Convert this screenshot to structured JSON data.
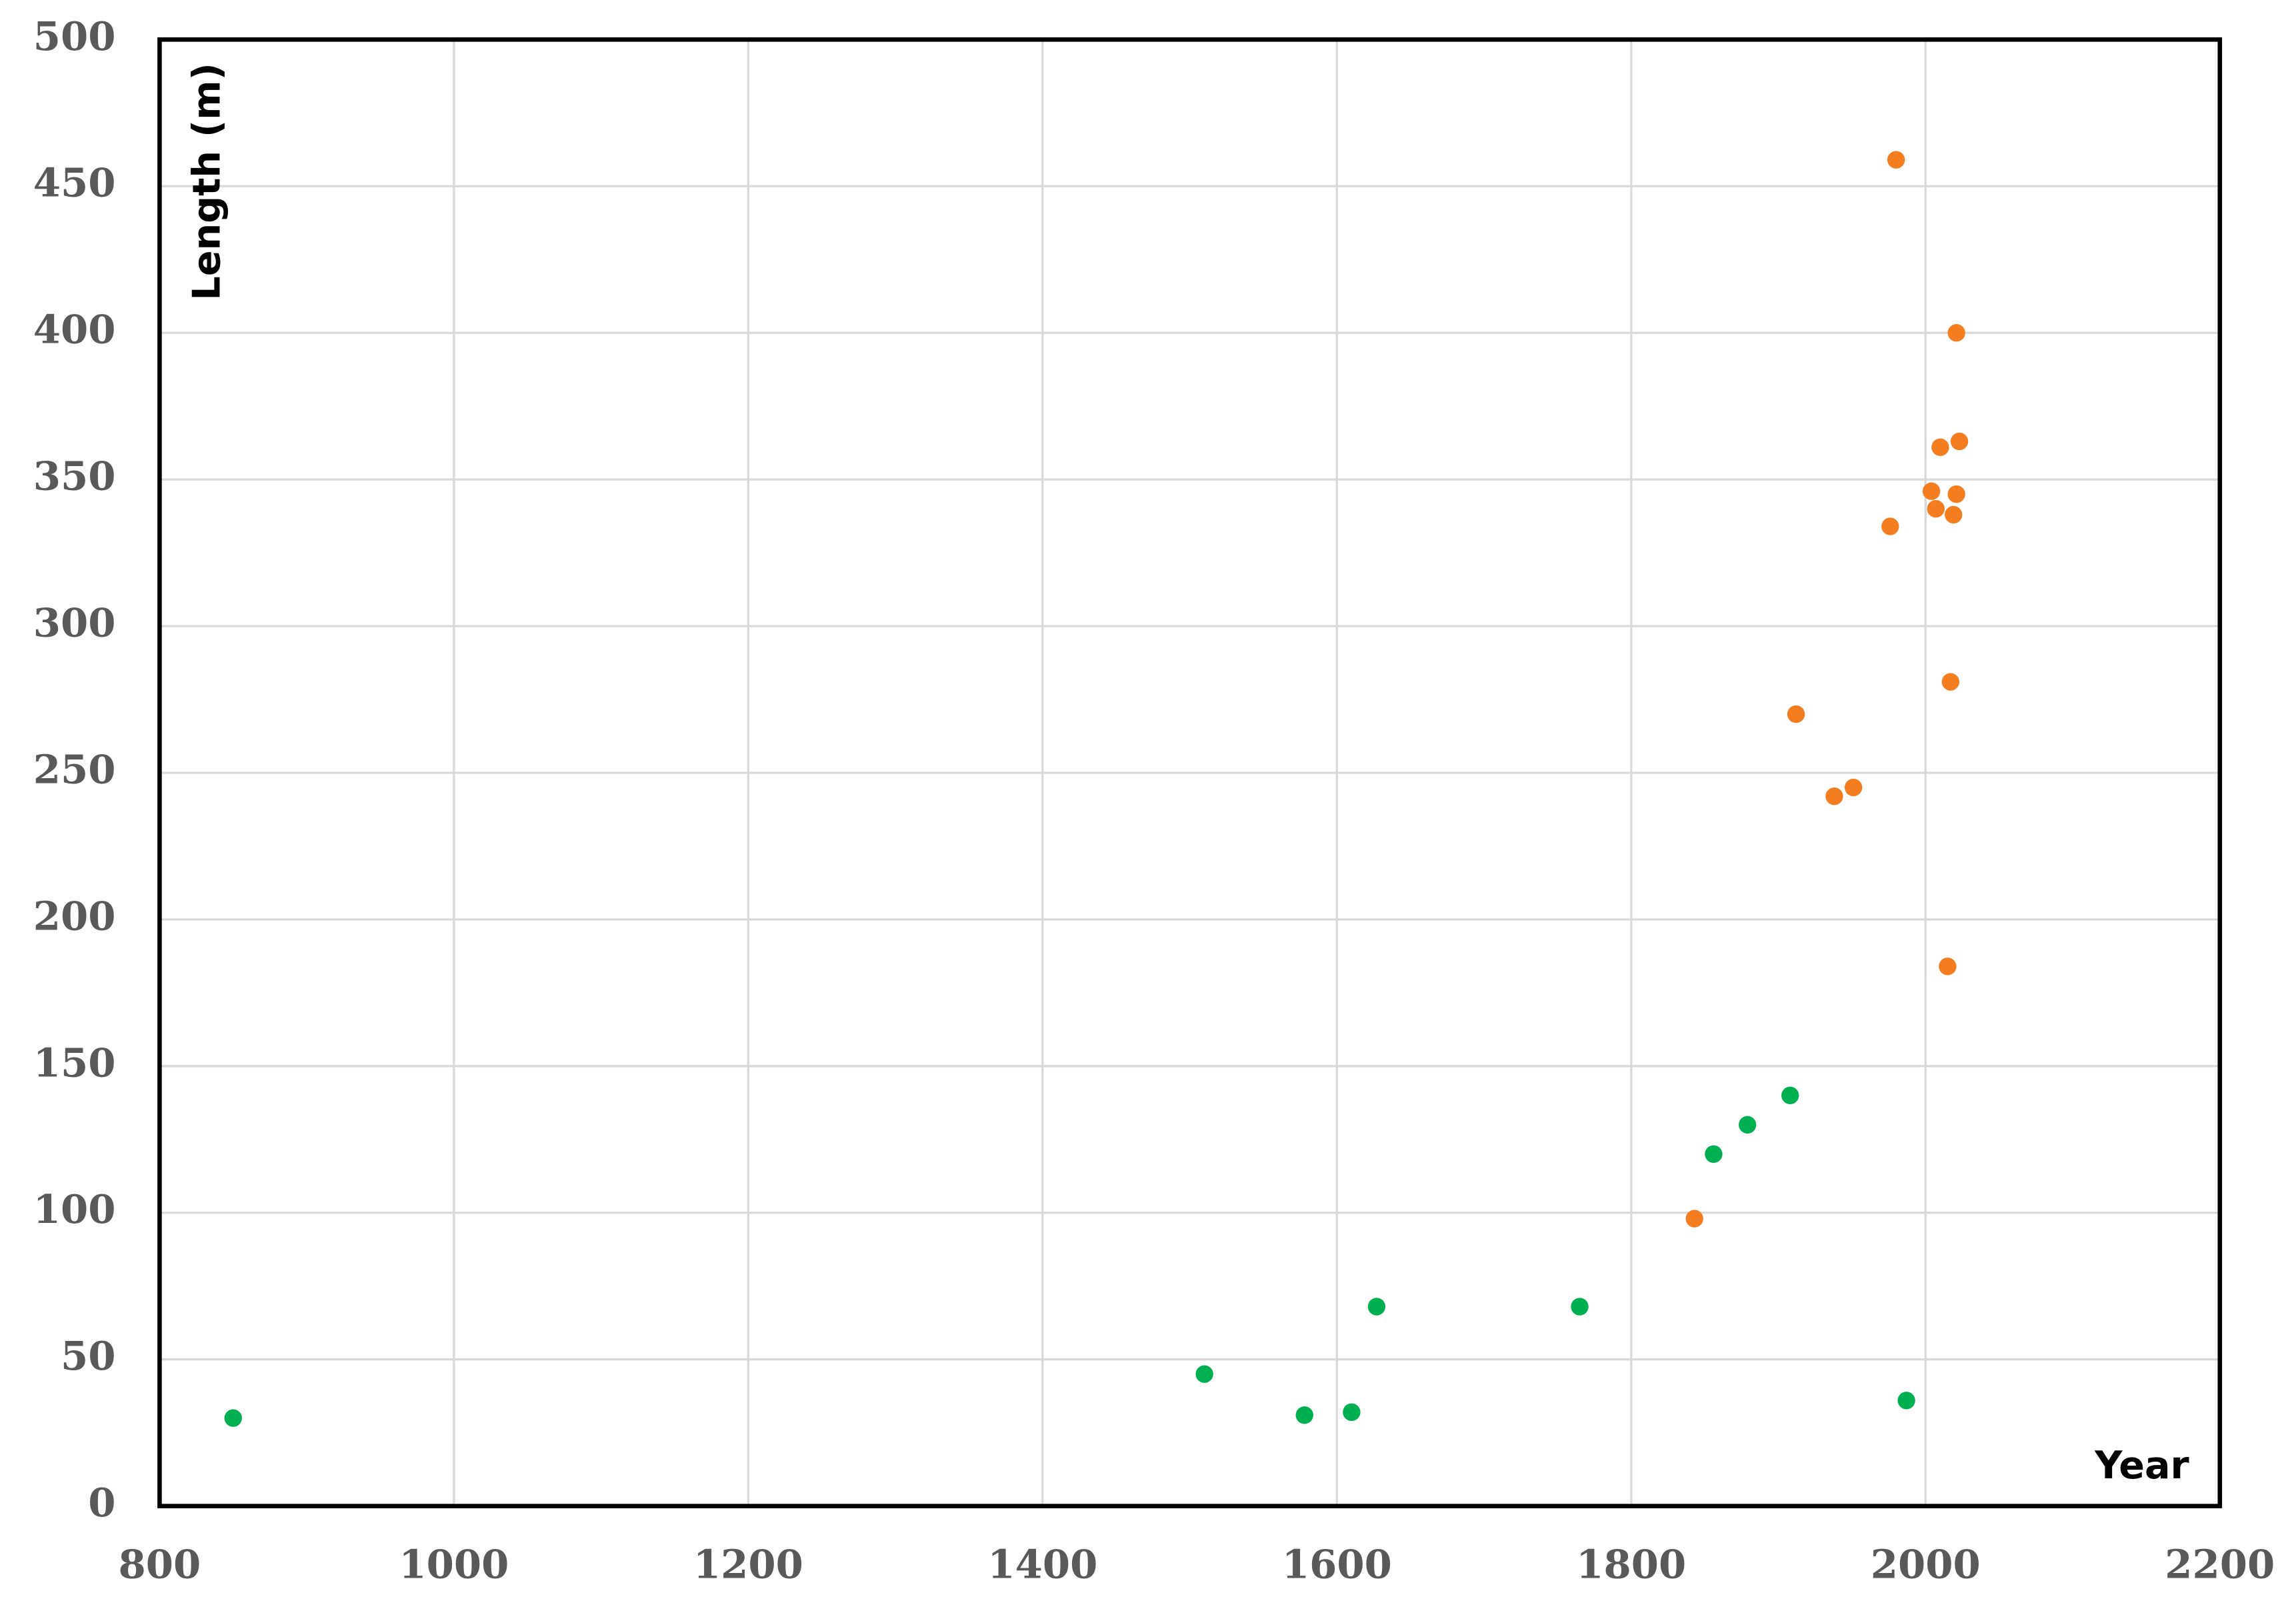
{
  "chart_data": {
    "type": "scatter",
    "x_label": "Year",
    "y_label": "Length (m)",
    "xlim": [
      800,
      2200
    ],
    "xticks": [
      800,
      1000,
      1200,
      1400,
      1600,
      1800,
      2000,
      2200
    ],
    "ylim": [
      0,
      500
    ],
    "yticks": [
      0,
      50,
      100,
      150,
      200,
      250,
      300,
      350,
      400,
      450,
      500
    ],
    "grid": true,
    "series": [
      {
        "color": "#00b050",
        "x": [
          850,
          1510,
          1578,
          1610,
          1627,
          1765,
          1856,
          1879,
          1908,
          1987
        ],
        "values": [
          30,
          45,
          31,
          32,
          68,
          68,
          120,
          130,
          140,
          36
        ]
      },
      {
        "color": "#f47d20",
        "x": [
          1843,
          1912,
          1938,
          1951,
          1976,
          1980,
          2004,
          2007,
          2010,
          2015,
          2017,
          2019,
          2021,
          2021,
          2023
        ],
        "values": [
          98,
          270,
          242,
          245,
          334,
          459,
          346,
          340,
          361,
          184,
          281,
          338,
          400,
          345,
          363
        ]
      }
    ]
  }
}
